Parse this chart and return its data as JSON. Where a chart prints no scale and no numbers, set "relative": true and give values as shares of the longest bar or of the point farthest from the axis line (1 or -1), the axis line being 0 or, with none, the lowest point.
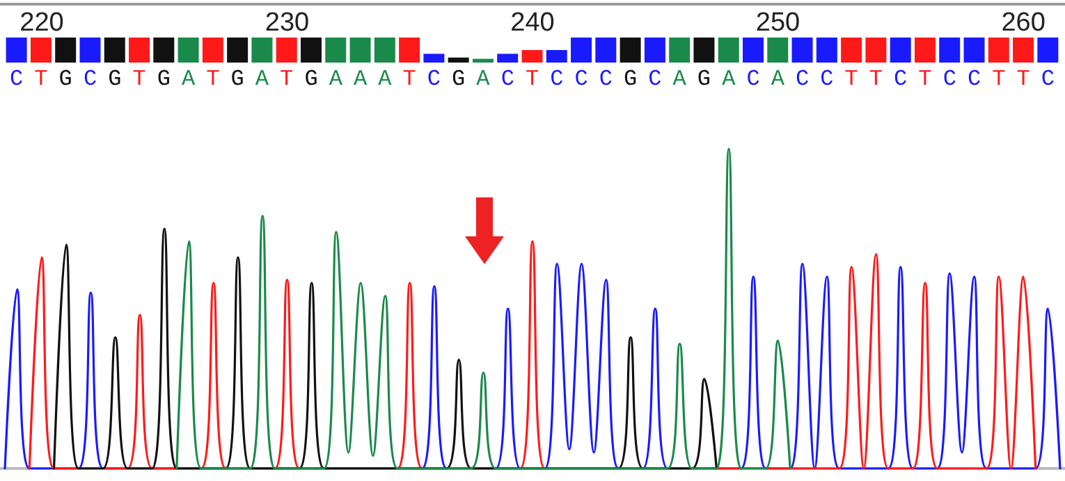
{
  "chart_data": [
    {
      "type": "bar",
      "relative": true,
      "grid": false,
      "categories": [
        "C",
        "T",
        "G",
        "C",
        "G",
        "T",
        "G",
        "A",
        "T",
        "G",
        "A",
        "T",
        "G",
        "A",
        "A",
        "A",
        "T",
        "C",
        "G",
        "A",
        "C",
        "T",
        "C",
        "C",
        "C",
        "G",
        "C",
        "A",
        "G",
        "A",
        "C",
        "A",
        "C",
        "C",
        "T",
        "T",
        "C",
        "T",
        "C",
        "C",
        "T",
        "T",
        "C"
      ],
      "colors": [
        "#1a1aff",
        "#ff1a1a",
        "#111111",
        "#1a1aff",
        "#111111",
        "#ff1a1a",
        "#111111",
        "#1a8a4a",
        "#ff1a1a",
        "#111111",
        "#1a8a4a",
        "#ff1a1a",
        "#111111",
        "#1a8a4a",
        "#1a8a4a",
        "#1a8a4a",
        "#ff1a1a",
        "#1a1aff",
        "#111111",
        "#1a8a4a",
        "#1a1aff",
        "#ff1a1a",
        "#1a1aff",
        "#1a1aff",
        "#1a1aff",
        "#111111",
        "#1a1aff",
        "#1a8a4a",
        "#111111",
        "#1a8a4a",
        "#1a1aff",
        "#1a8a4a",
        "#1a1aff",
        "#1a1aff",
        "#ff1a1a",
        "#ff1a1a",
        "#1a1aff",
        "#ff1a1a",
        "#1a1aff",
        "#1a1aff",
        "#ff1a1a",
        "#ff1a1a",
        "#1a1aff"
      ],
      "values": [
        1,
        1,
        1,
        1,
        1,
        1,
        1,
        1,
        1,
        1,
        1,
        1,
        1,
        1,
        1,
        1,
        1,
        0.35,
        0.2,
        0.15,
        0.35,
        0.5,
        0.5,
        1,
        1,
        1,
        1,
        1,
        1,
        1,
        1,
        1,
        1,
        1,
        1,
        1,
        1,
        1,
        1,
        1,
        1,
        1,
        1
      ]
    },
    {
      "type": "line",
      "relative": true,
      "grid": false,
      "marker": "none",
      "line_style": "solid",
      "xlim": [
        218.3,
        261.7
      ],
      "xticks": [
        220,
        230,
        240,
        250,
        260
      ],
      "series": [
        {
          "color": "#1a1aff",
          "x": [
            218.5,
            219,
            219.5,
            221.5,
            222,
            222.5,
            235.5,
            236,
            236.5,
            238.5,
            239,
            239.5,
            240.5,
            241,
            241.5,
            242,
            242.5,
            243,
            243.5,
            244.5,
            245,
            245.5,
            248.5,
            249,
            249.5,
            250.5,
            251,
            251.5,
            252,
            252.5,
            254.5,
            255,
            255.5,
            256.5,
            257,
            257.5,
            258,
            258.5,
            260.5,
            261,
            261.5
          ],
          "values": [
            0,
            0.56,
            0,
            0,
            0.55,
            0,
            0,
            0.57,
            0,
            0,
            0.5,
            0,
            0,
            0.64,
            0.06,
            0.64,
            0.05,
            0.59,
            0,
            0,
            0.5,
            0,
            0,
            0.6,
            0,
            0,
            0.64,
            0,
            0.6,
            0,
            0,
            0.63,
            0,
            0,
            0.61,
            0.05,
            0.6,
            0,
            0,
            0.5,
            0
          ]
        },
        {
          "color": "#ff1a1a",
          "x": [
            219.5,
            220,
            220.5,
            223.5,
            224,
            224.5,
            226.5,
            227,
            227.5,
            229.5,
            230,
            230.5,
            234.5,
            235,
            235.5,
            239.5,
            240,
            240.5,
            252.5,
            253,
            253.5,
            254,
            254.5,
            255.5,
            256,
            256.5,
            258.5,
            259,
            259.5,
            260,
            260.5
          ],
          "values": [
            0,
            0.66,
            0,
            0,
            0.48,
            0,
            0,
            0.58,
            0,
            0,
            0.59,
            0,
            0,
            0.58,
            0,
            0,
            0.71,
            0,
            0,
            0.63,
            0,
            0.67,
            0,
            0,
            0.58,
            0,
            0,
            0.6,
            0,
            0.6,
            0
          ]
        },
        {
          "color": "#111111",
          "x": [
            220.5,
            221,
            221.5,
            222.5,
            223,
            223.5,
            224.5,
            225,
            225.5,
            227.5,
            228,
            228.5,
            230.5,
            231,
            231.5,
            236.5,
            237,
            237.5,
            243.5,
            244,
            244.5,
            246.5,
            247,
            247.5
          ],
          "values": [
            0,
            0.7,
            0,
            0,
            0.41,
            0,
            0,
            0.75,
            0,
            0,
            0.66,
            0,
            0,
            0.58,
            0,
            0,
            0.34,
            0,
            0,
            0.41,
            0,
            0,
            0.28,
            0
          ]
        },
        {
          "color": "#1a8a4a",
          "x": [
            225.5,
            226,
            226.5,
            228.5,
            229,
            229.5,
            231.5,
            232,
            232.5,
            233,
            233.5,
            234,
            234.5,
            237.5,
            238,
            238.5,
            245.5,
            246,
            246.5,
            247.5,
            248,
            248.5,
            249.5,
            250,
            250.5
          ],
          "values": [
            0,
            0.71,
            0,
            0,
            0.79,
            0,
            0,
            0.74,
            0.05,
            0.58,
            0.04,
            0.54,
            0,
            0,
            0.3,
            0,
            0,
            0.39,
            0,
            0,
            1.0,
            0,
            0,
            0.4,
            0
          ]
        }
      ]
    }
  ]
}
